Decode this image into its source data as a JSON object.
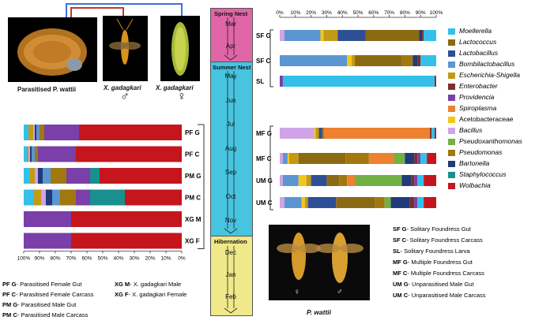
{
  "top": {
    "labels": {
      "parasitised": "Parasitised P. wattii",
      "xg_male": "X. gadagkari",
      "xg_female": "X. gadagkari",
      "male_sym": "♂",
      "female_sym": "♀"
    }
  },
  "timeline": {
    "spring_title": "Spring Nest",
    "summer_title": "Summer Nest",
    "hibernation_title": "Hibernation",
    "spring_months": [
      "Mar",
      "Apr"
    ],
    "summer_months": [
      "May",
      "Jun",
      "Jul",
      "Aug",
      "Sep",
      "Oct",
      "Nov"
    ],
    "hibernation_months": [
      "Dec",
      "Jan",
      "Feb"
    ],
    "colors": {
      "spring": "#e066a8",
      "summer": "#47c4e0",
      "hibernation": "#efe98a"
    }
  },
  "legend": [
    {
      "name": "Moellerella",
      "color": "#33c0ea",
      "italic": true
    },
    {
      "name": "Lactococcus",
      "color": "#8b6a14",
      "italic": true
    },
    {
      "name": "Lactobacillus",
      "color": "#2e4f96",
      "italic": true
    },
    {
      "name": "Bombilactobacillus",
      "color": "#5b95d2",
      "italic": true
    },
    {
      "name": "Escherichia-Shigella",
      "color": "#c39a15",
      "italic": true
    },
    {
      "name": "Enterobacter",
      "color": "#7b2e2e",
      "italic": true
    },
    {
      "name": "Providencia",
      "color": "#7a3fa8",
      "italic": true
    },
    {
      "name": "Spiroplasma",
      "color": "#ee8130",
      "italic": true
    },
    {
      "name": "Acetobacteraceae",
      "color": "#f5c518",
      "italic": false
    },
    {
      "name": "Bacillus",
      "color": "#cfa3e6",
      "italic": true
    },
    {
      "name": "Pseudoxanthomonas",
      "color": "#72b043",
      "italic": true
    },
    {
      "name": "Pseudomonas",
      "color": "#a0780e",
      "italic": true
    },
    {
      "name": "Bartonella",
      "color": "#213a7a",
      "italic": true
    },
    {
      "name": "Staphylococcus",
      "color": "#1a8f8f",
      "italic": true
    },
    {
      "name": "Wolbachia",
      "color": "#c4161c",
      "italic": true
    }
  ],
  "left_key": [
    {
      "code": "PF G",
      "desc": "- Parasitised Female Gut"
    },
    {
      "code": "PF C",
      "desc": "- Parasitised Female Carcass"
    },
    {
      "code": "PM G",
      "desc": "- Parasitised Male Gut"
    },
    {
      "code": "PM C",
      "desc": "- Parasitised Male Carcass"
    },
    {
      "code": "XG M",
      "desc": "- X. gadagkari Male"
    },
    {
      "code": "XG F",
      "desc": "- X. gadagkari Female"
    }
  ],
  "right_key": [
    {
      "code": "SF G",
      "desc": "- Solitary Foundress Gut"
    },
    {
      "code": "SF C",
      "desc": "- Solitary Foundress Carcass"
    },
    {
      "code": "SL",
      "desc": "- Solitary Foundress Larva"
    },
    {
      "code": "MF G",
      "desc": "- Multiple Foundress Gut"
    },
    {
      "code": "MF C",
      "desc": "- Multiple Foundress Carcass"
    },
    {
      "code": "UM G",
      "desc": "- Unparasitised Male Gut"
    },
    {
      "code": "UM C",
      "desc": "- Unparasitised Male Carcass"
    }
  ],
  "wattii_photo": {
    "label": "P. wattii",
    "female_sym": "♀",
    "male_sym": "♂"
  },
  "chart_data": [
    {
      "type": "bar",
      "orientation": "horizontal-stacked-reversed",
      "title": "",
      "xlabel": "",
      "xlim": [
        0,
        100
      ],
      "ticks": [
        "100%",
        "90%",
        "80%",
        "70%",
        "60%",
        "50%",
        "40%",
        "30%",
        "20%",
        "10%",
        "0%"
      ],
      "categories": [
        "PF G",
        "PF C",
        "PM G",
        "PM C",
        "XG M",
        "XG F"
      ],
      "series": [
        {
          "name": "Wolbachia",
          "values": [
            65,
            67,
            52,
            36,
            70,
            70
          ]
        },
        {
          "name": "Staphylococcus",
          "values": [
            0,
            0,
            6,
            22,
            0,
            0
          ]
        },
        {
          "name": "Providencia",
          "values": [
            22,
            24,
            15,
            9,
            30,
            30
          ]
        },
        {
          "name": "Pseudomonas",
          "values": [
            3,
            2,
            10,
            10,
            0,
            0
          ]
        },
        {
          "name": "Bombilactobacillus",
          "values": [
            2,
            2,
            5,
            5,
            0,
            0
          ]
        },
        {
          "name": "Bartonella",
          "values": [
            1,
            1,
            3,
            4,
            0,
            0
          ]
        },
        {
          "name": "Bacillus",
          "values": [
            1,
            1,
            2,
            3,
            0,
            0
          ]
        },
        {
          "name": "Escherichia-Shigella",
          "values": [
            3,
            1,
            3,
            5,
            0,
            0
          ]
        },
        {
          "name": "Moellerella",
          "values": [
            3,
            2,
            4,
            6,
            0,
            0
          ]
        }
      ]
    },
    {
      "type": "bar",
      "orientation": "horizontal-stacked",
      "title": "",
      "xlabel": "",
      "xlim": [
        0,
        100
      ],
      "ticks": [
        "0%",
        "10%",
        "20%",
        "30%",
        "40%",
        "50%",
        "60%",
        "70%",
        "80%",
        "90%",
        "100%"
      ],
      "categories": [
        "SF G",
        "SF C",
        "SL",
        "MF G",
        "MF C",
        "UM G",
        "UM C"
      ],
      "series": [
        {
          "name": "Bacillus",
          "values": [
            3,
            0,
            0,
            22,
            2,
            2,
            3
          ]
        },
        {
          "name": "Bombilactobacillus",
          "values": [
            23,
            43,
            0,
            0,
            3,
            10,
            11
          ]
        },
        {
          "name": "Acetobacteraceae",
          "values": [
            2,
            3,
            0,
            1,
            1,
            5,
            2
          ]
        },
        {
          "name": "Escherichia-Shigella",
          "values": [
            9,
            2,
            0,
            2,
            6,
            3,
            2
          ]
        },
        {
          "name": "Lactobacillus",
          "values": [
            18,
            0,
            0,
            2,
            0,
            10,
            18
          ]
        },
        {
          "name": "Lactococcus",
          "values": [
            34,
            30,
            0,
            1,
            30,
            8,
            25
          ]
        },
        {
          "name": "Pseudomonas",
          "values": [
            0,
            7,
            0,
            0,
            15,
            5,
            6
          ]
        },
        {
          "name": "Spiroplasma",
          "values": [
            0,
            0,
            0,
            68,
            16,
            5,
            0
          ]
        },
        {
          "name": "Pseudoxanthomonas",
          "values": [
            0,
            0,
            0,
            0,
            7,
            30,
            4
          ]
        },
        {
          "name": "Bartonella",
          "values": [
            2,
            3,
            0,
            0,
            6,
            6,
            12
          ]
        },
        {
          "name": "Enterobacter",
          "values": [
            1,
            2,
            0,
            1,
            2,
            2,
            3
          ]
        },
        {
          "name": "Providencia",
          "values": [
            0,
            0,
            2,
            0,
            2,
            2,
            2
          ]
        },
        {
          "name": "Moellerella",
          "values": [
            8,
            10,
            97,
            2,
            4,
            4,
            4
          ]
        },
        {
          "name": "Wolbachia",
          "values": [
            0,
            0,
            1,
            1,
            6,
            8,
            8
          ]
        }
      ]
    }
  ]
}
